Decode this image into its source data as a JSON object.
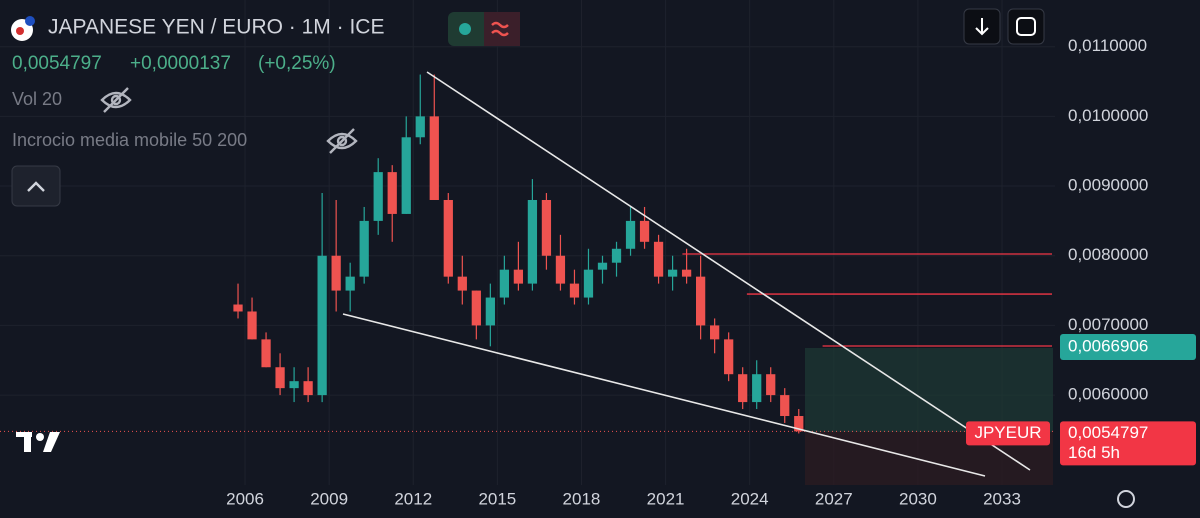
{
  "chart_data": {
    "type": "candlestick",
    "title": "JAPANESE YEN / EURO · 1M · ICE",
    "symbol": "JPYEUR",
    "last_price_label": "0,0054797",
    "price_change": "+0,0000137",
    "percent_change": "(+0,25%)",
    "countdown": "16d 5h",
    "indicators": [
      "Vol 20",
      "Incrocio media mobile 50 200"
    ],
    "target": {
      "value": 0.0066906,
      "label": "0,0066906"
    },
    "levels": {
      "values": [
        0.008025,
        0.00745,
        0.006705
      ],
      "start": [
        2021.6,
        2023.9,
        2026.6
      ],
      "color": "#f23645"
    },
    "colors": {
      "up": "#26a69a",
      "down": "#ef5350"
    },
    "x": [
      2005.75,
      2006.25,
      2006.75,
      2007.25,
      2007.75,
      2008.25,
      2008.75,
      2009.25,
      2009.75,
      2010.25,
      2010.75,
      2011.25,
      2011.75,
      2012.25,
      2012.75,
      2013.25,
      2013.75,
      2014.25,
      2014.75,
      2015.25,
      2015.75,
      2016.25,
      2016.75,
      2017.25,
      2017.75,
      2018.25,
      2018.75,
      2019.25,
      2019.75,
      2020.25,
      2020.75,
      2021.25,
      2021.75,
      2022.25,
      2022.75,
      2023.25,
      2023.75,
      2024.25,
      2024.75,
      2025.25,
      2025.75
    ],
    "open": [
      0.0073,
      0.0072,
      0.0068,
      0.0064,
      0.0061,
      0.0062,
      0.006,
      0.008,
      0.0075,
      0.0077,
      0.0085,
      0.0092,
      0.0086,
      0.0097,
      0.01,
      0.0088,
      0.0077,
      0.0075,
      0.007,
      0.0074,
      0.0078,
      0.0076,
      0.0088,
      0.008,
      0.0076,
      0.0074,
      0.0078,
      0.0079,
      0.0081,
      0.0085,
      0.0082,
      0.0077,
      0.0078,
      0.0077,
      0.007,
      0.0068,
      0.0063,
      0.0059,
      0.0063,
      0.006,
      0.0057
    ],
    "high": [
      0.0076,
      0.0074,
      0.0069,
      0.0066,
      0.0064,
      0.0064,
      0.0089,
      0.0088,
      0.0079,
      0.0087,
      0.0094,
      0.0093,
      0.01,
      0.0106,
      0.0106,
      0.0089,
      0.008,
      0.0075,
      0.0076,
      0.008,
      0.0082,
      0.0091,
      0.0089,
      0.0083,
      0.0078,
      0.0081,
      0.008,
      0.0082,
      0.0087,
      0.0087,
      0.0083,
      0.008,
      0.0081,
      0.008,
      0.0071,
      0.0069,
      0.0064,
      0.0065,
      0.0064,
      0.0061,
      0.0058
    ],
    "low": [
      0.0071,
      0.0068,
      0.0064,
      0.006,
      0.0059,
      0.0059,
      0.0059,
      0.0072,
      0.0072,
      0.0076,
      0.0083,
      0.0082,
      0.0086,
      0.0096,
      0.0088,
      0.0076,
      0.0073,
      0.0068,
      0.0067,
      0.0073,
      0.0075,
      0.0075,
      0.0078,
      0.0075,
      0.0073,
      0.0073,
      0.0076,
      0.0077,
      0.008,
      0.0081,
      0.0076,
      0.0075,
      0.0076,
      0.0068,
      0.0066,
      0.0062,
      0.0058,
      0.0058,
      0.0059,
      0.0056,
      0.00545
    ],
    "close": [
      0.0072,
      0.0068,
      0.0064,
      0.0061,
      0.0062,
      0.006,
      0.008,
      0.0075,
      0.0077,
      0.0085,
      0.0092,
      0.0086,
      0.0097,
      0.01,
      0.0088,
      0.0077,
      0.0075,
      0.007,
      0.0074,
      0.0078,
      0.0076,
      0.0088,
      0.008,
      0.0076,
      0.0074,
      0.0078,
      0.0079,
      0.0081,
      0.0085,
      0.0082,
      0.0077,
      0.0078,
      0.0077,
      0.007,
      0.0068,
      0.0063,
      0.0059,
      0.0063,
      0.006,
      0.0057,
      0.0054797
    ],
    "xlim": [
      1997.26,
      2034.89
    ],
    "ylim": [
      0.00471,
      0.01167
    ],
    "xticks": [
      2006,
      2009,
      2012,
      2015,
      2018,
      2021,
      2024,
      2027,
      2030,
      2033
    ],
    "yticks": [
      {
        "value": 0.006,
        "label": "0,0060000"
      },
      {
        "value": 0.007,
        "label": "0,0070000"
      },
      {
        "value": 0.008,
        "label": "0,0080000"
      },
      {
        "value": 0.009,
        "label": "0,0090000"
      },
      {
        "value": 0.01,
        "label": "0,0100000"
      },
      {
        "value": 0.011,
        "label": "0,0110000"
      }
    ]
  }
}
